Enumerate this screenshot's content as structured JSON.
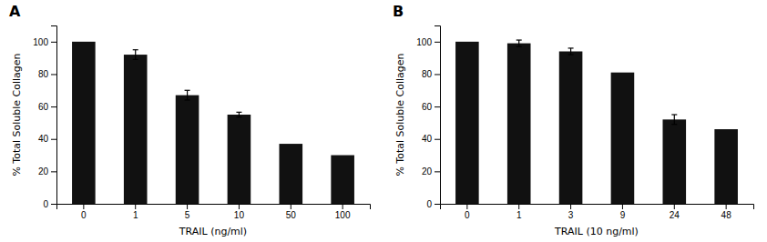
{
  "chart_data": [
    {
      "type": "bar",
      "title": "A",
      "categories": [
        "0",
        "1",
        "5",
        "10",
        "50",
        "100"
      ],
      "values": [
        100,
        92,
        67,
        55,
        37,
        30
      ],
      "errors": [
        0,
        3,
        3,
        1.5,
        0,
        0
      ],
      "xlabel": "TRAIL (ng/ml)",
      "ylabel": "% Total Soluble Collagen",
      "ylim": [
        0,
        110
      ],
      "yticks": [
        0,
        20,
        40,
        60,
        80,
        100
      ],
      "color": "#111111"
    },
    {
      "type": "bar",
      "title": "B",
      "categories": [
        "0",
        "1",
        "3",
        "9",
        "24",
        "48"
      ],
      "values": [
        100,
        99,
        94,
        81,
        52,
        46
      ],
      "errors": [
        0,
        2,
        2,
        0,
        3,
        0
      ],
      "xlabel": "TRAIL (10 ng/ml)",
      "ylabel": "% Total Soluble Collagen",
      "ylim": [
        0,
        110
      ],
      "yticks": [
        0,
        20,
        40,
        60,
        80,
        100
      ],
      "color": "#111111"
    }
  ]
}
